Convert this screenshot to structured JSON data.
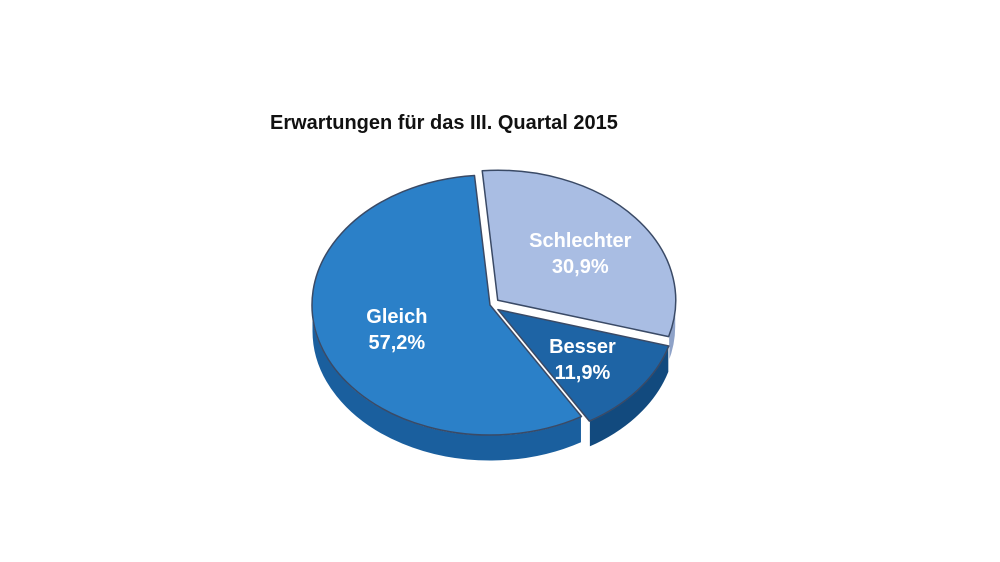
{
  "chart_data": {
    "type": "pie",
    "title": "Erwartungen für das III. Quartal 2015",
    "slices": [
      {
        "label": "Schlechter",
        "value": 30.9,
        "value_label": "30,9%",
        "color": "#a9bde3",
        "side_color": "#8ea2c8",
        "exploded": true
      },
      {
        "label": "Besser",
        "value": 11.9,
        "value_label": "11,9%",
        "color": "#1e64a5",
        "side_color": "#124a7e",
        "exploded": true
      },
      {
        "label": "Gleich",
        "value": 57.2,
        "value_label": "57,2%",
        "color": "#2b80c8",
        "side_color": "#1a5f9e",
        "exploded": false
      }
    ],
    "legend": "none",
    "style": "3d-tilted"
  }
}
